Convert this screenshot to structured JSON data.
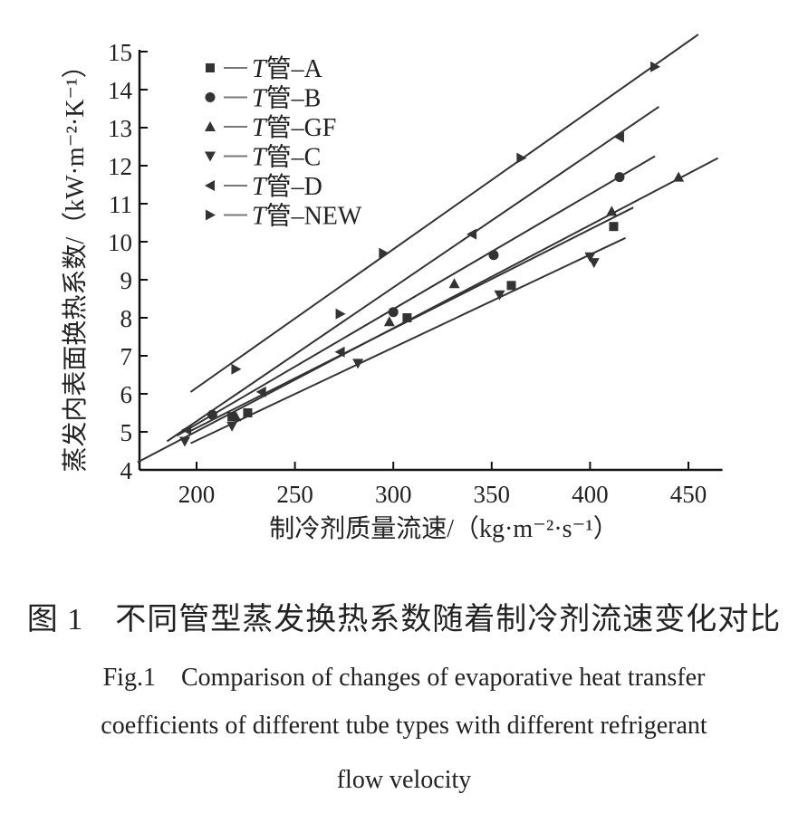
{
  "chart_data": {
    "type": "scatter",
    "xlabel": "制冷剂质量流速/（kg·m⁻²·s⁻¹）",
    "ylabel": "蒸发内表面换热系数/（kW·m⁻²·K⁻¹）",
    "xlim": [
      171,
      465
    ],
    "ylim": [
      4,
      15
    ],
    "xticks": [
      200,
      250,
      300,
      350,
      400,
      450
    ],
    "yticks": [
      4,
      5,
      6,
      7,
      8,
      9,
      10,
      11,
      12,
      13,
      14,
      15
    ],
    "grid": false,
    "legend_position": "top-left",
    "color": "#333333",
    "series": [
      {
        "name": "T管-A",
        "marker": "square",
        "points": [
          [
            218,
            5.4
          ],
          [
            226,
            5.5
          ],
          [
            307,
            8.0
          ],
          [
            360,
            8.85
          ],
          [
            412,
            10.4
          ]
        ],
        "fit": [
          [
            196,
            5.0
          ],
          [
            422,
            10.9
          ]
        ]
      },
      {
        "name": "T管-B",
        "marker": "circle",
        "points": [
          [
            208,
            5.45
          ],
          [
            300,
            8.15
          ],
          [
            351,
            9.65
          ],
          [
            415,
            11.7
          ]
        ],
        "fit": [
          [
            190,
            4.9
          ],
          [
            433,
            12.25
          ]
        ]
      },
      {
        "name": "T管-GF",
        "marker": "triangle-up",
        "points": [
          [
            220,
            5.4
          ],
          [
            298,
            7.9
          ],
          [
            331,
            8.9
          ],
          [
            411,
            10.8
          ],
          [
            445,
            11.7
          ]
        ],
        "fit": [
          [
            170,
            4.2
          ],
          [
            465,
            12.2
          ]
        ]
      },
      {
        "name": "T管-C",
        "marker": "triangle-down",
        "points": [
          [
            194,
            4.75
          ],
          [
            218,
            5.15
          ],
          [
            282,
            6.8
          ],
          [
            354,
            8.6
          ],
          [
            400,
            9.6
          ],
          [
            402,
            9.45
          ]
        ],
        "fit": [
          [
            197,
            4.7
          ],
          [
            418,
            10.1
          ]
        ]
      },
      {
        "name": "T管-D",
        "marker": "triangle-left",
        "points": [
          [
            195,
            5.05
          ],
          [
            233,
            6.05
          ],
          [
            273,
            7.1
          ],
          [
            340,
            10.2
          ],
          [
            415,
            12.75
          ]
        ],
        "fit": [
          [
            185,
            4.75
          ],
          [
            435,
            13.55
          ]
        ]
      },
      {
        "name": "T管-NEW",
        "marker": "triangle-right",
        "points": [
          [
            220,
            6.65
          ],
          [
            273,
            8.1
          ],
          [
            295,
            9.7
          ],
          [
            365,
            12.2
          ],
          [
            433,
            14.6
          ]
        ],
        "fit": [
          [
            197,
            6.05
          ],
          [
            455,
            15.45
          ]
        ]
      }
    ]
  },
  "caption": {
    "cn": "图 1　不同管型蒸发换热系数随着制冷剂流速变化对比",
    "en_line1": "Fig.1　Comparison of changes of evaporative heat transfer",
    "en_line2": "coefficients of different tube types with different refrigerant",
    "en_line3": "flow velocity"
  }
}
